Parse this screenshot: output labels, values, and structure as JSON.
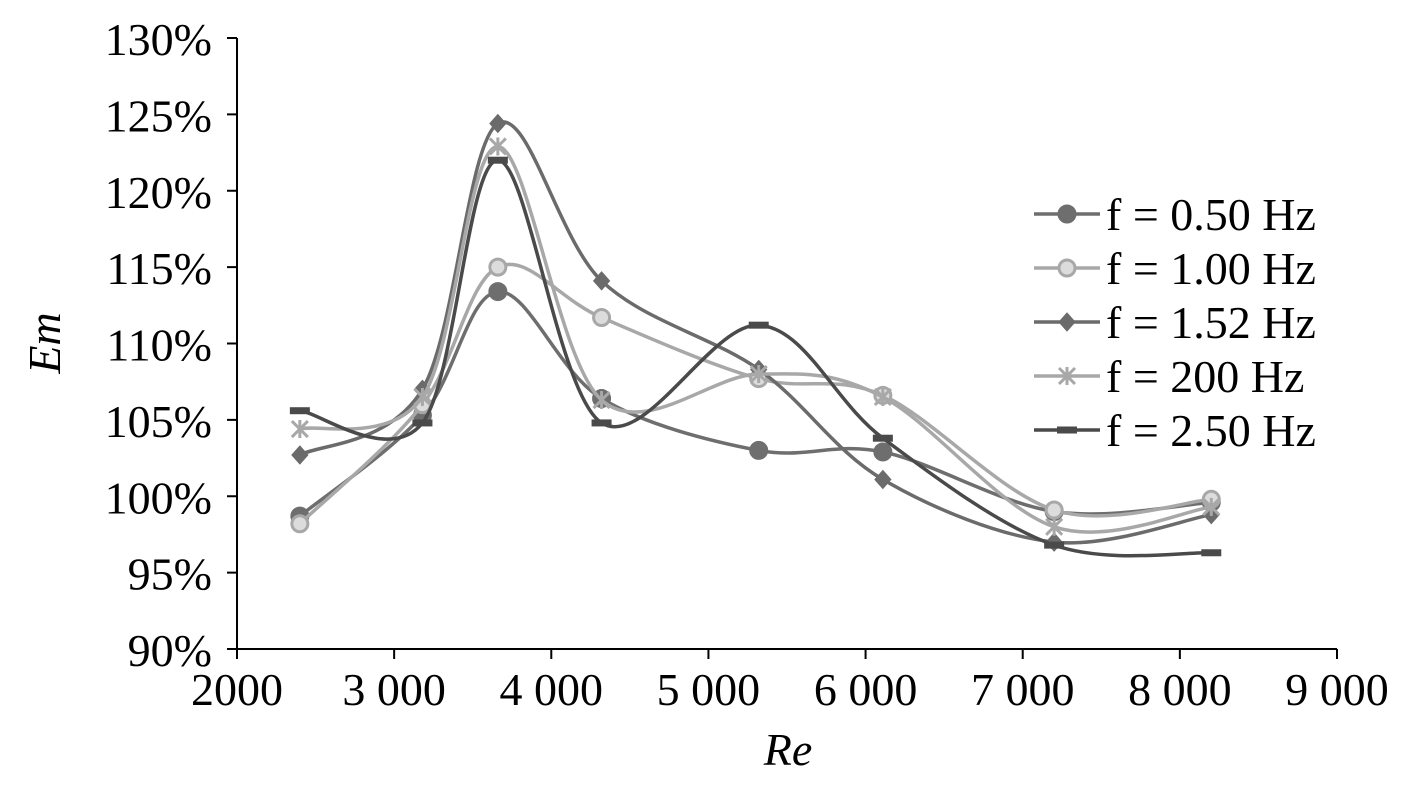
{
  "chart_data": {
    "type": "line",
    "title": "",
    "xlabel": "Re",
    "ylabel": "Em",
    "xlim": [
      2000,
      9000
    ],
    "ylim": [
      90,
      130
    ],
    "x_ticks": [
      2000,
      3000,
      4000,
      5000,
      6000,
      7000,
      8000,
      9000
    ],
    "x_tick_labels": [
      "2000",
      "3 000",
      "4 000",
      "5 000",
      "6 000",
      "7 000",
      "8 000",
      "9 000"
    ],
    "y_ticks": [
      90,
      95,
      100,
      105,
      110,
      115,
      120,
      125,
      130
    ],
    "y_tick_labels": [
      "90%",
      "95%",
      "100%",
      "105%",
      "110%",
      "115%",
      "120%",
      "125%",
      "130%"
    ],
    "grid": false,
    "legend_position": "right",
    "x": [
      2400,
      3180,
      3660,
      4320,
      5320,
      6110,
      7200,
      8200
    ],
    "series": [
      {
        "name": "f = 0.50 Hz",
        "marker": "circle",
        "color": "#6e6e6e",
        "values": [
          98.7,
          105.3,
          113.4,
          106.4,
          103.0,
          102.9,
          99.0,
          99.6
        ]
      },
      {
        "name": "f = 1.00 Hz",
        "marker": "open-circle",
        "color": "#a8a8a8",
        "values": [
          98.2,
          106.0,
          115.0,
          111.7,
          107.7,
          106.6,
          99.1,
          99.8
        ]
      },
      {
        "name": "f = 1.52 Hz",
        "marker": "diamond",
        "color": "#6b6b6b",
        "values": [
          102.7,
          107.0,
          124.4,
          114.1,
          108.3,
          101.1,
          97.0,
          98.8
        ]
      },
      {
        "name": "f = 200 Hz",
        "marker": "asterisk",
        "color": "#a8a8a8",
        "values": [
          104.4,
          106.5,
          122.9,
          106.3,
          108.0,
          106.5,
          98.0,
          99.3
        ]
      },
      {
        "name": "f = 2.50 Hz",
        "marker": "dash",
        "color": "#4a4a4a",
        "values": [
          105.6,
          104.8,
          122.0,
          104.8,
          111.2,
          103.8,
          96.8,
          96.3
        ]
      }
    ]
  }
}
